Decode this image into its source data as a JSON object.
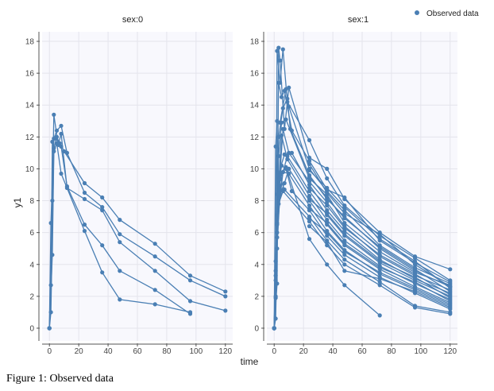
{
  "caption": "Figure 1: Observed data",
  "chart_data": {
    "type": "line",
    "xlabel": "time",
    "ylabel": "y1",
    "xlim": [
      -5,
      125
    ],
    "ylim": [
      -0.8,
      18.6
    ],
    "xticks": [
      "0",
      "20",
      "40",
      "60",
      "80",
      "100",
      "120"
    ],
    "yticks": [
      "0",
      "2",
      "4",
      "6",
      "8",
      "10",
      "12",
      "14",
      "16",
      "18"
    ],
    "color": "#4a7fb4",
    "legend": {
      "label": "Observed data",
      "position": "top-right"
    },
    "panels": [
      {
        "title": "sex:0",
        "series": [
          {
            "name": "id1",
            "x": [
              0,
              1,
              2,
              4,
              7,
              10,
              24,
              36,
              48,
              72,
              96,
              120
            ],
            "y": [
              0,
              2.7,
              11.7,
              11.9,
              11.6,
              11.1,
              9.1,
              8.2,
              6.8,
              5.3,
              3.3,
              2.3
            ]
          },
          {
            "name": "id2",
            "x": [
              0,
              1,
              3,
              5,
              8,
              12,
              24,
              36,
              48,
              72,
              96,
              120
            ],
            "y": [
              0,
              6.6,
              11.9,
              12.4,
              12.7,
              11.0,
              8.5,
              7.6,
              5.9,
              4.5,
              3.0,
              2.0
            ]
          },
          {
            "name": "id3",
            "x": [
              0,
              2,
              3,
              6,
              8,
              12,
              24,
              36,
              48,
              72,
              96,
              120
            ],
            "y": [
              0,
              8.0,
              13.4,
              11.5,
              12.2,
              8.8,
              8.1,
              7.4,
              5.4,
              3.6,
              1.7,
              1.1
            ]
          },
          {
            "name": "id4",
            "x": [
              0,
              1,
              3,
              5,
              8,
              12,
              24,
              36,
              48,
              72,
              96
            ],
            "y": [
              0,
              1.0,
              11.3,
              12.0,
              11.4,
              8.9,
              6.5,
              5.2,
              3.6,
              2.4,
              0.9
            ]
          },
          {
            "name": "id5",
            "x": [
              0,
              2,
              3,
              5,
              8,
              24,
              36,
              48,
              72,
              96
            ],
            "y": [
              0,
              4.6,
              11.1,
              11.6,
              9.7,
              6.1,
              3.5,
              1.8,
              1.5,
              1.0
            ]
          }
        ]
      },
      {
        "title": "sex:1",
        "series": [
          {
            "name": "p01",
            "x": [
              0,
              2,
              3,
              4,
              7,
              10,
              24,
              36,
              48,
              72,
              96,
              120
            ],
            "y": [
              0,
              2.8,
              17.6,
              16.8,
              12.5,
              15.1,
              10.7,
              10.0,
              8.1,
              6.0,
              4.5,
              3.7
            ]
          },
          {
            "name": "p02",
            "x": [
              0,
              1,
              2,
              4,
              6,
              9,
              24,
              36,
              48,
              72,
              96,
              120
            ],
            "y": [
              0,
              1.9,
              17.4,
              15.4,
              17.5,
              14.2,
              11.8,
              9.4,
              7.7,
              5.8,
              4.4,
              3.0
            ]
          },
          {
            "name": "p03",
            "x": [
              0,
              1,
              3,
              5,
              7,
              12,
              24,
              36,
              48,
              72,
              96,
              120
            ],
            "y": [
              0,
              3.6,
              15.4,
              14.5,
              14.9,
              12.4,
              10.5,
              8.7,
              8.2,
              5.5,
              4.1,
              2.9
            ]
          },
          {
            "name": "p04",
            "x": [
              0,
              1,
              2,
              4,
              8,
              10,
              24,
              36,
              48,
              72,
              96,
              120
            ],
            "y": [
              0,
              11.4,
              13.0,
              12.9,
              15.0,
              13.9,
              10.0,
              8.6,
              7.4,
              5.2,
              3.8,
              2.8
            ]
          },
          {
            "name": "p05",
            "x": [
              0,
              2,
              3,
              6,
              9,
              11,
              24,
              36,
              48,
              72,
              96,
              120
            ],
            "y": [
              0,
              8.4,
              12.0,
              13.8,
              14.4,
              12.5,
              9.6,
              8.1,
              7.0,
              5.0,
              3.6,
              2.6
            ]
          },
          {
            "name": "p06",
            "x": [
              0,
              1,
              3,
              5,
              8,
              24,
              36,
              48,
              72,
              96,
              120
            ],
            "y": [
              0,
              3.3,
              10.8,
              12.9,
              13.1,
              9.4,
              8.4,
              6.6,
              4.8,
              3.5,
              2.7
            ]
          },
          {
            "name": "p07",
            "x": [
              0,
              2,
              4,
              6,
              10,
              24,
              36,
              48,
              72,
              96,
              120
            ],
            "y": [
              0,
              6.6,
              9.7,
              12.5,
              11.0,
              9.2,
              7.9,
              6.4,
              4.5,
              3.3,
              2.4
            ]
          },
          {
            "name": "p08",
            "x": [
              0,
              1,
              3,
              7,
              12,
              24,
              36,
              48,
              72,
              96,
              120
            ],
            "y": [
              0,
              0.6,
              9.7,
              10.9,
              11.0,
              9.0,
              7.4,
              6.1,
              4.3,
              3.1,
              2.2
            ]
          },
          {
            "name": "p09",
            "x": [
              0,
              2,
              4,
              6,
              9,
              24,
              36,
              48,
              72,
              96,
              120
            ],
            "y": [
              0,
              5.0,
              8.7,
              9.8,
              10.8,
              8.6,
              7.1,
              5.8,
              4.1,
              3.0,
              2.0
            ]
          },
          {
            "name": "p10",
            "x": [
              0,
              1,
              3,
              5,
              9,
              24,
              36,
              48,
              72,
              96,
              120
            ],
            "y": [
              0,
              3.0,
              9.0,
              12.1,
              10.6,
              8.3,
              6.8,
              5.5,
              3.9,
              2.8,
              1.8
            ]
          },
          {
            "name": "p11",
            "x": [
              0,
              2,
              4,
              7,
              10,
              24,
              36,
              48,
              72,
              96,
              120
            ],
            "y": [
              0,
              5.7,
              8.4,
              9.1,
              10.0,
              8.0,
              6.5,
              5.2,
              3.7,
              2.6,
              1.6
            ]
          },
          {
            "name": "p12",
            "x": [
              0,
              1,
              2,
              6,
              10,
              24,
              36,
              48,
              72,
              96,
              120
            ],
            "y": [
              0,
              2.0,
              6.5,
              9.8,
              9.7,
              7.7,
              6.1,
              4.9,
              3.4,
              2.4,
              1.4
            ]
          },
          {
            "name": "p13",
            "x": [
              0,
              3,
              5,
              8,
              12,
              24,
              36,
              48,
              72,
              96,
              120
            ],
            "y": [
              0,
              8.9,
              10.2,
              10.0,
              8.6,
              7.4,
              5.8,
              4.6,
              3.2,
              2.2,
              1.2
            ]
          },
          {
            "name": "p14",
            "x": [
              0,
              2,
              4,
              7,
              24,
              36,
              48,
              72,
              96,
              120
            ],
            "y": [
              0,
              6.0,
              9.4,
              8.7,
              7.0,
              5.5,
              4.3,
              2.9,
              1.4,
              1.0
            ]
          },
          {
            "name": "p15",
            "x": [
              0,
              1,
              3,
              6,
              24,
              36,
              48,
              72,
              96,
              120
            ],
            "y": [
              0,
              4.2,
              7.8,
              8.6,
              6.7,
              5.2,
              4.0,
              2.7,
              1.3,
              0.9
            ]
          },
          {
            "name": "p16",
            "x": [
              0,
              2,
              4,
              8,
              24,
              36,
              48,
              72
            ],
            "y": [
              0,
              7.1,
              9.6,
              10.1,
              5.6,
              4.0,
              2.7,
              0.8
            ]
          },
          {
            "name": "p17",
            "x": [
              24,
              36,
              48,
              72,
              96,
              120
            ],
            "y": [
              9.9,
              8.8,
              7.6,
              5.6,
              4.2,
              2.5
            ]
          },
          {
            "name": "p18",
            "x": [
              24,
              36,
              48,
              72,
              96,
              120
            ],
            "y": [
              9.5,
              8.2,
              6.9,
              5.1,
              3.7,
              2.3
            ]
          },
          {
            "name": "p19",
            "x": [
              24,
              36,
              48,
              72,
              96,
              120
            ],
            "y": [
              8.8,
              7.7,
              6.3,
              4.6,
              3.4,
              2.1
            ]
          },
          {
            "name": "p20",
            "x": [
              24,
              36,
              48,
              72,
              96,
              120
            ],
            "y": [
              8.1,
              7.2,
              5.9,
              4.2,
              3.2,
              1.9
            ]
          },
          {
            "name": "p21",
            "x": [
              24,
              36,
              48,
              72,
              96,
              120
            ],
            "y": [
              7.5,
              6.6,
              5.3,
              3.8,
              2.9,
              1.7
            ]
          },
          {
            "name": "p22",
            "x": [
              24,
              36,
              48,
              72,
              96,
              120
            ],
            "y": [
              6.9,
              6.0,
              4.8,
              3.5,
              2.5,
              1.5
            ]
          },
          {
            "name": "p23",
            "x": [
              24,
              36,
              48,
              72,
              96,
              120
            ],
            "y": [
              6.4,
              5.4,
              3.6,
              3.1,
              2.3,
              1.3
            ]
          },
          {
            "name": "p24",
            "x": [
              24,
              36,
              48,
              72,
              96,
              120
            ],
            "y": [
              10.3,
              8.5,
              7.2,
              5.9,
              4.0,
              2.6
            ]
          }
        ]
      }
    ]
  }
}
